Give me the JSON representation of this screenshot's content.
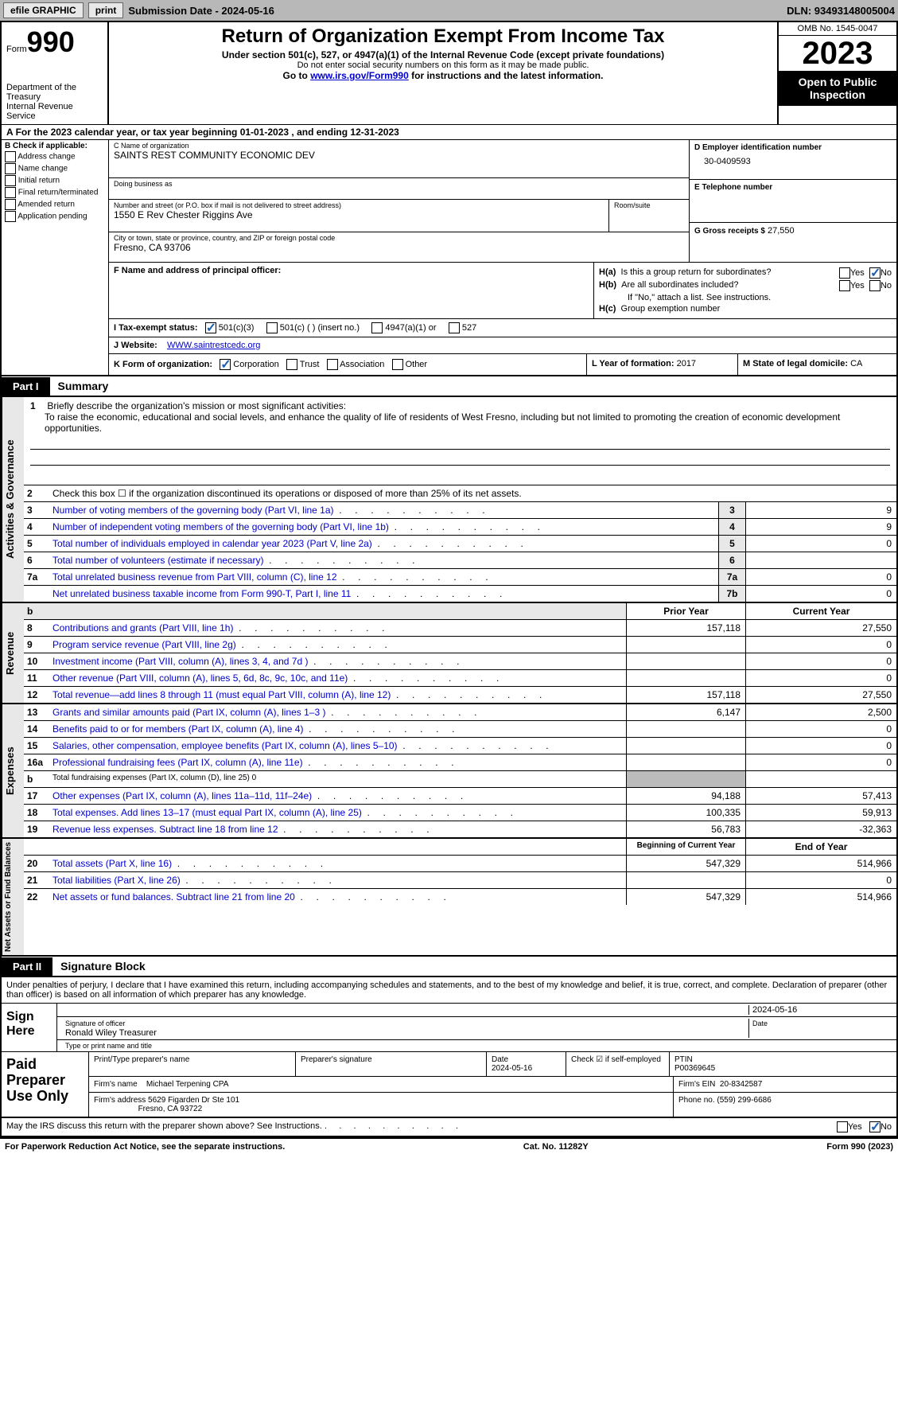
{
  "topbar": {
    "efile": "efile GRAPHIC",
    "print": "print",
    "submission": "Submission Date - 2024-05-16",
    "dln": "DLN: 93493148005004"
  },
  "header": {
    "form_label": "Form",
    "form_num": "990",
    "dept": "Department of the Treasury",
    "irs": "Internal Revenue Service",
    "title": "Return of Organization Exempt From Income Tax",
    "sub1": "Under section 501(c), 527, or 4947(a)(1) of the Internal Revenue Code (except private foundations)",
    "sub2": "Do not enter social security numbers on this form as it may be made public.",
    "sub3_pre": "Go to ",
    "sub3_link": "www.irs.gov/Form990",
    "sub3_post": " for instructions and the latest information.",
    "omb": "OMB No. 1545-0047",
    "year": "2023",
    "open": "Open to Public Inspection"
  },
  "period": {
    "label_a": "A",
    "text": "For the 2023 calendar year, or tax year beginning 01-01-2023    , and ending 12-31-2023"
  },
  "section_b": {
    "hdr": "B Check if applicable:",
    "opts": [
      "Address change",
      "Name change",
      "Initial return",
      "Final return/terminated",
      "Amended return",
      "Application pending"
    ]
  },
  "section_c": {
    "lbl": "C Name of organization",
    "name": "SAINTS REST COMMUNITY ECONOMIC DEV",
    "dba_lbl": "Doing business as",
    "addr_lbl": "Number and street (or P.O. box if mail is not delivered to street address)",
    "addr": "1550 E Rev Chester Riggins Ave",
    "suite_lbl": "Room/suite",
    "city_lbl": "City or town, state or province, country, and ZIP or foreign postal code",
    "city": "Fresno, CA   93706"
  },
  "section_d": {
    "lbl": "D Employer identification number",
    "val": "30-0409593"
  },
  "section_e": {
    "lbl": "E Telephone number"
  },
  "section_g": {
    "lbl": "G Gross receipts $",
    "val": "27,550"
  },
  "section_f": {
    "lbl": "F   Name and address of principal officer:"
  },
  "section_h": {
    "ha_lbl": "H(a)",
    "ha_txt": "Is this a group return for subordinates?",
    "hb_lbl": "H(b)",
    "hb_txt": "Are all subordinates included?",
    "hb_note": "If \"No,\" attach a list. See instructions.",
    "hc_lbl": "H(c)",
    "hc_txt": "Group exemption number",
    "yes": "Yes",
    "no": "No"
  },
  "section_i": {
    "lbl": "I      Tax-exempt status:",
    "opts": [
      "501(c)(3)",
      "501(c) (  ) (insert no.)",
      "4947(a)(1) or",
      "527"
    ]
  },
  "section_j": {
    "lbl": "J     Website:",
    "val": "WWW.saintrestcedc.org"
  },
  "section_k": {
    "lbl": "K Form of organization:",
    "opts": [
      "Corporation",
      "Trust",
      "Association",
      "Other"
    ]
  },
  "section_l": {
    "lbl": "L Year of formation:",
    "val": "2017"
  },
  "section_m": {
    "lbl": "M State of legal domicile:",
    "val": "CA"
  },
  "part1": {
    "tag": "Part I",
    "title": "Summary"
  },
  "mission": {
    "num": "1",
    "lbl": "Briefly describe the organization's mission or most significant activities:",
    "txt": "To raise the economic, educational and social levels, and enhance the quality of life of residents of West Fresno, including but not limited to promoting the creation of economic development opportunities."
  },
  "gov_rows": [
    {
      "n": "2",
      "t": "Check this box  ☐  if the organization discontinued its operations or disposed of more than 25% of its net assets.",
      "box": "",
      "v": ""
    },
    {
      "n": "3",
      "t": "Number of voting members of the governing body (Part VI, line 1a)",
      "box": "3",
      "v": "9"
    },
    {
      "n": "4",
      "t": "Number of independent voting members of the governing body (Part VI, line 1b)",
      "box": "4",
      "v": "9"
    },
    {
      "n": "5",
      "t": "Total number of individuals employed in calendar year 2023 (Part V, line 2a)",
      "box": "5",
      "v": "0"
    },
    {
      "n": "6",
      "t": "Total number of volunteers (estimate if necessary)",
      "box": "6",
      "v": ""
    },
    {
      "n": "7a",
      "t": "Total unrelated business revenue from Part VIII, column (C), line 12",
      "box": "7a",
      "v": "0"
    },
    {
      "n": "",
      "t": "Net unrelated business taxable income from Form 990-T, Part I, line 11",
      "box": "7b",
      "v": "0"
    }
  ],
  "rev_hdr": {
    "prior": "Prior Year",
    "current": "Current Year"
  },
  "rev_rows": [
    {
      "n": "8",
      "t": "Contributions and grants (Part VIII, line 1h)",
      "p": "157,118",
      "c": "27,550"
    },
    {
      "n": "9",
      "t": "Program service revenue (Part VIII, line 2g)",
      "p": "",
      "c": "0"
    },
    {
      "n": "10",
      "t": "Investment income (Part VIII, column (A), lines 3, 4, and 7d )",
      "p": "",
      "c": "0"
    },
    {
      "n": "11",
      "t": "Other revenue (Part VIII, column (A), lines 5, 6d, 8c, 9c, 10c, and 11e)",
      "p": "",
      "c": "0"
    },
    {
      "n": "12",
      "t": "Total revenue—add lines 8 through 11 (must equal Part VIII, column (A), line 12)",
      "p": "157,118",
      "c": "27,550"
    }
  ],
  "exp_rows": [
    {
      "n": "13",
      "t": "Grants and similar amounts paid (Part IX, column (A), lines 1–3 )",
      "p": "6,147",
      "c": "2,500"
    },
    {
      "n": "14",
      "t": "Benefits paid to or for members (Part IX, column (A), line 4)",
      "p": "",
      "c": "0"
    },
    {
      "n": "15",
      "t": "Salaries, other compensation, employee benefits (Part IX, column (A), lines 5–10)",
      "p": "",
      "c": "0"
    },
    {
      "n": "16a",
      "t": "Professional fundraising fees (Part IX, column (A), line 11e)",
      "p": "",
      "c": "0"
    },
    {
      "n": "b",
      "t": "Total fundraising expenses (Part IX, column (D), line 25) 0",
      "p": "grey",
      "c": "grey"
    },
    {
      "n": "17",
      "t": "Other expenses (Part IX, column (A), lines 11a–11d, 11f–24e)",
      "p": "94,188",
      "c": "57,413"
    },
    {
      "n": "18",
      "t": "Total expenses. Add lines 13–17 (must equal Part IX, column (A), line 25)",
      "p": "100,335",
      "c": "59,913"
    },
    {
      "n": "19",
      "t": "Revenue less expenses. Subtract line 18 from line 12",
      "p": "56,783",
      "c": "-32,363"
    }
  ],
  "net_hdr": {
    "begin": "Beginning of Current Year",
    "end": "End of Year"
  },
  "net_rows": [
    {
      "n": "20",
      "t": "Total assets (Part X, line 16)",
      "p": "547,329",
      "c": "514,966"
    },
    {
      "n": "21",
      "t": "Total liabilities (Part X, line 26)",
      "p": "",
      "c": "0"
    },
    {
      "n": "22",
      "t": "Net assets or fund balances. Subtract line 21 from line 20",
      "p": "547,329",
      "c": "514,966"
    }
  ],
  "vtabs": {
    "gov": "Activities & Governance",
    "rev": "Revenue",
    "exp": "Expenses",
    "net": "Net Assets or Fund Balances"
  },
  "part2": {
    "tag": "Part II",
    "title": "Signature Block"
  },
  "sig": {
    "decl": "Under penalties of perjury, I declare that I have examined this return, including accompanying schedules and statements, and to the best of my knowledge and belief, it is true, correct, and complete. Declaration of preparer (other than officer) is based on all information of which preparer has any knowledge.",
    "sign_here": "Sign Here",
    "sig_officer_lbl": "Signature of officer",
    "officer": "Ronald Wiley  Treasurer",
    "type_lbl": "Type or print name and title",
    "date_lbl": "Date",
    "date": "2024-05-16"
  },
  "paid": {
    "lbl": "Paid Preparer Use Only",
    "print_lbl": "Print/Type preparer's name",
    "prep_sig_lbl": "Preparer's signature",
    "date_lbl": "Date",
    "date": "2024-05-16",
    "check_lbl": "Check ☑ if self-employed",
    "ptin_lbl": "PTIN",
    "ptin": "P00369645",
    "firm_name_lbl": "Firm's name",
    "firm_name": "Michael Terpening CPA",
    "firm_ein_lbl": "Firm's EIN",
    "firm_ein": "20-8342587",
    "firm_addr_lbl": "Firm's address",
    "firm_addr": "5629 Figarden Dr Ste 101",
    "firm_city": "Fresno, CA   93722",
    "phone_lbl": "Phone no.",
    "phone": "(559) 299-6686"
  },
  "discuss": {
    "txt": "May the IRS discuss this return with the preparer shown above? See Instructions.",
    "yes": "Yes",
    "no": "No"
  },
  "footer": {
    "left": "For Paperwork Reduction Act Notice, see the separate instructions.",
    "mid": "Cat. No. 11282Y",
    "right": "Form 990 (2023)"
  }
}
